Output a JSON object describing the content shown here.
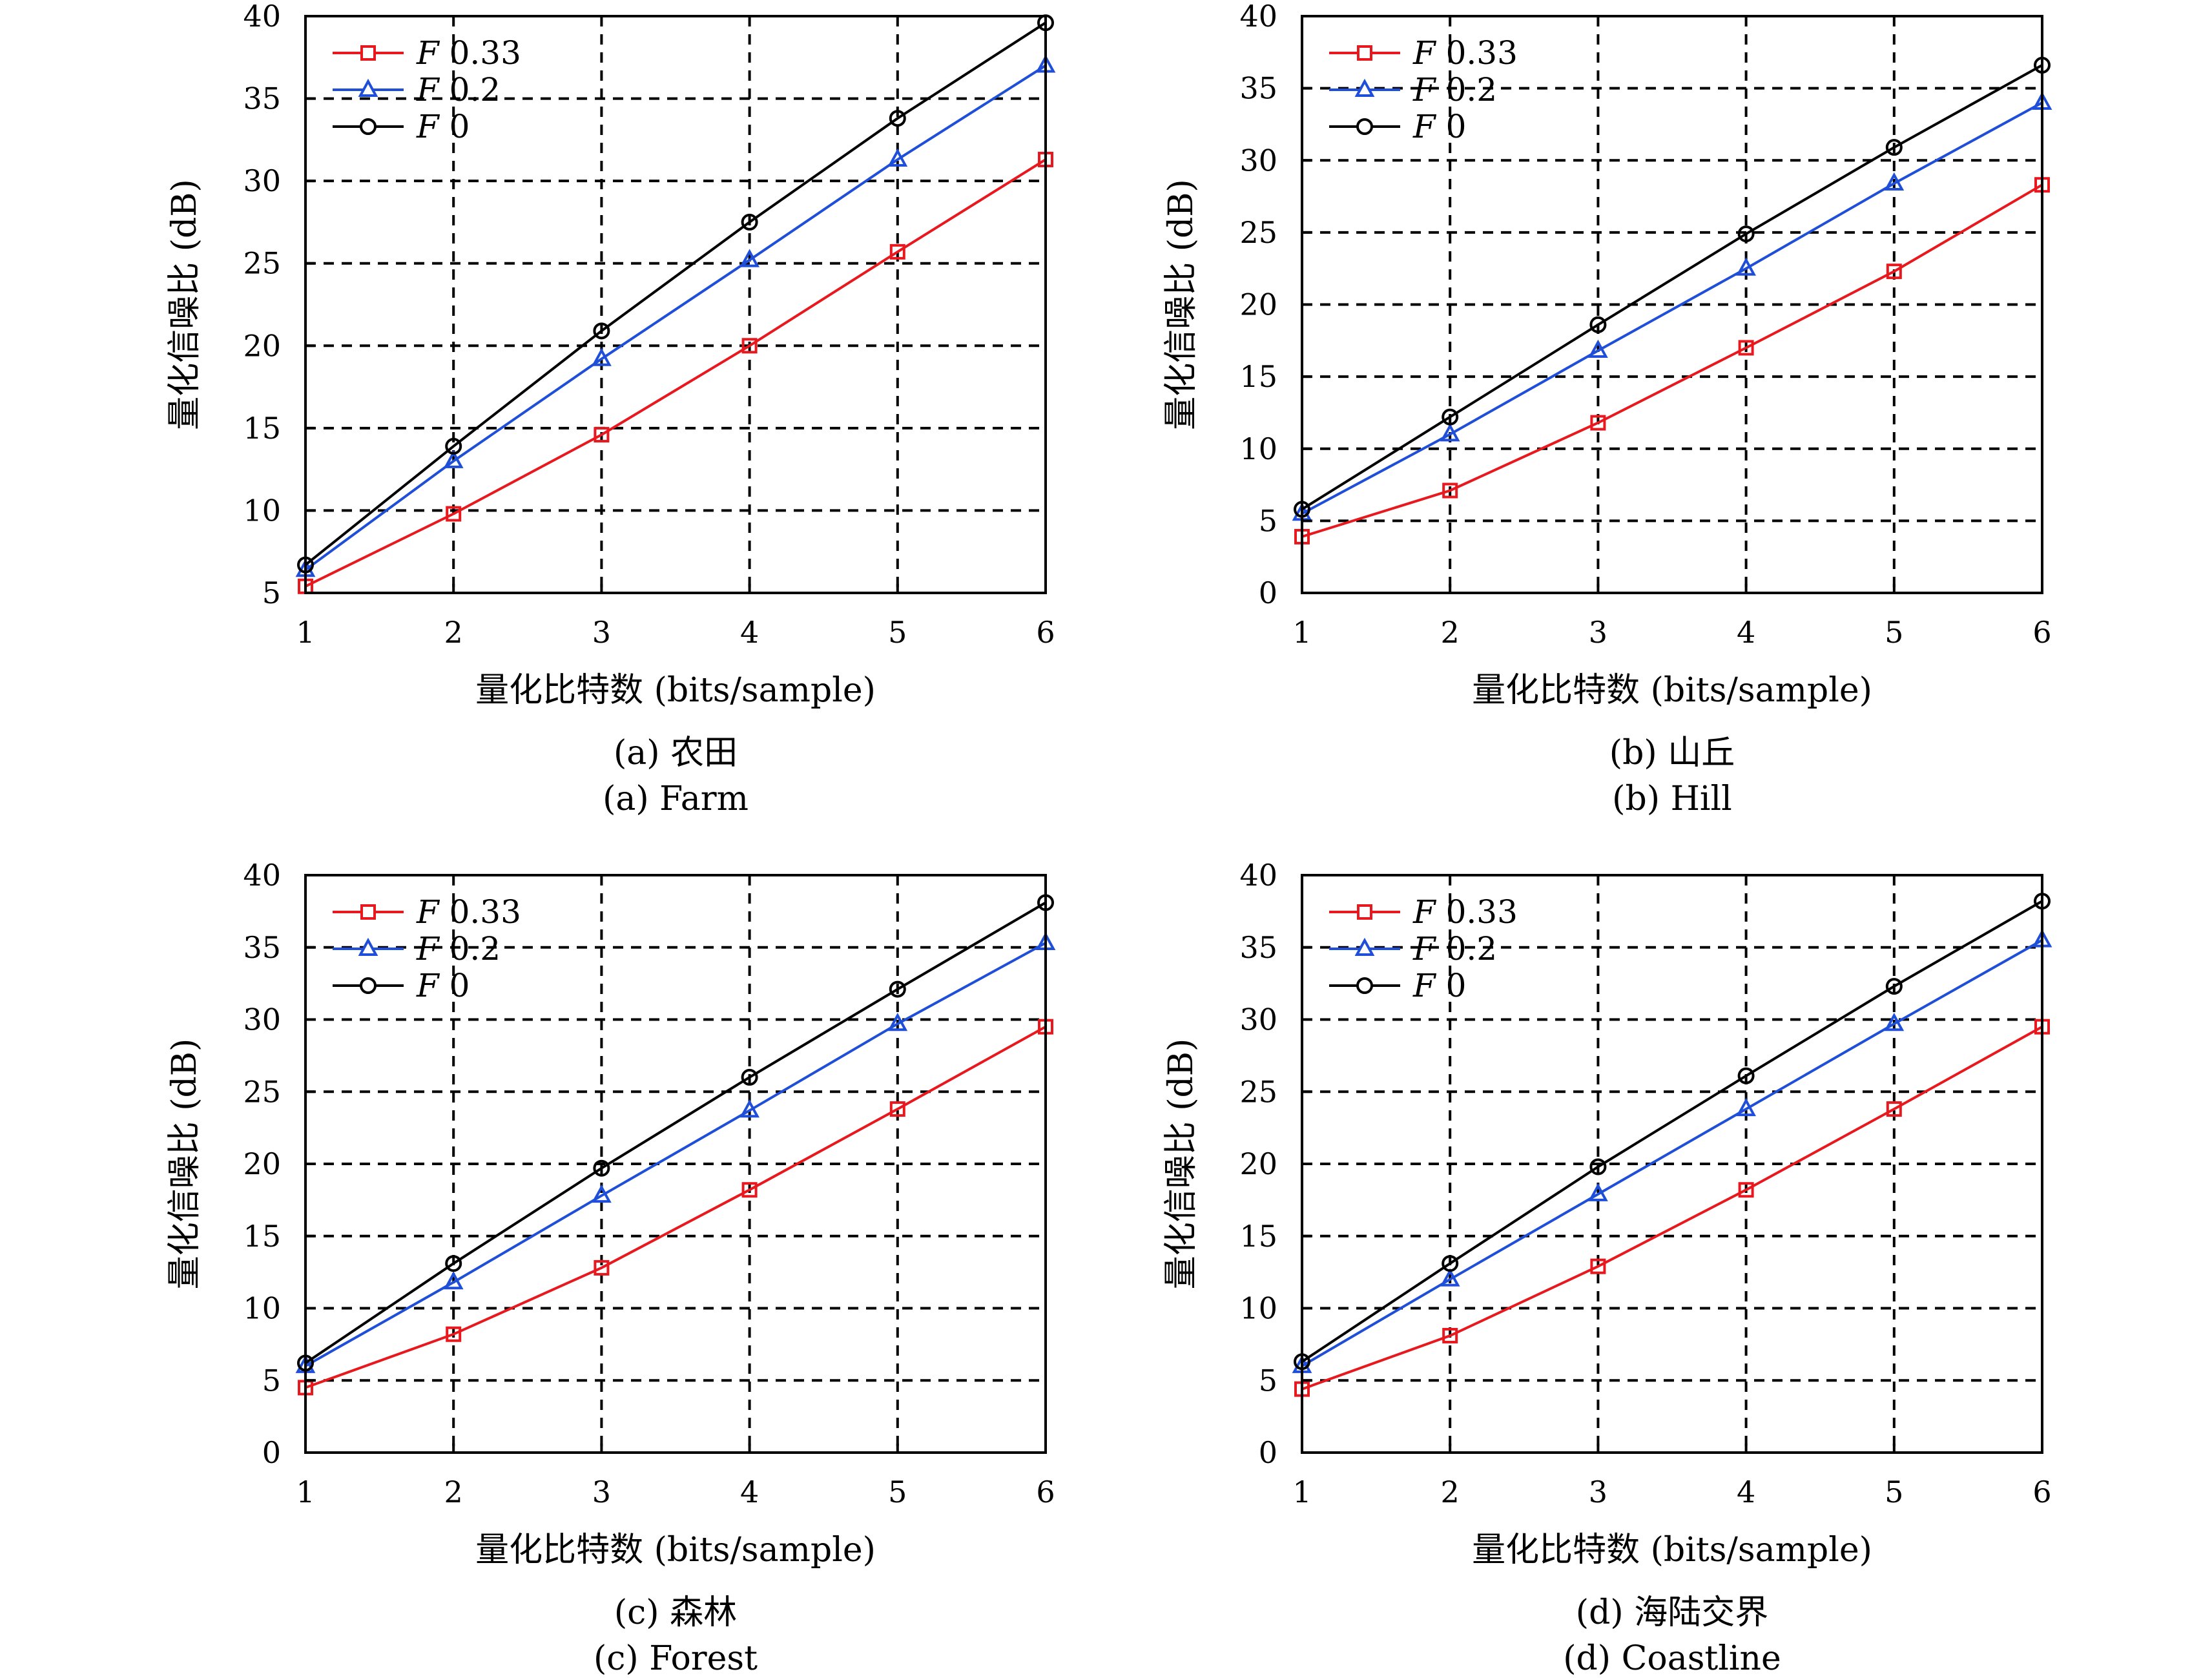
{
  "figure": {
    "xlabel": "量化比特数 (bits/sample)",
    "ylabel": "量化信噪比 (dB)"
  },
  "chart_data": [
    {
      "type": "line",
      "caption_zh": "(a) 农田",
      "caption_en": "(a) Farm",
      "xlabel": "量化比特数 (bits/sample)",
      "ylabel": "量化信噪比 (dB)",
      "x": [
        1,
        2,
        3,
        4,
        5,
        6
      ],
      "xlim": [
        1,
        6
      ],
      "ylim": [
        5,
        40
      ],
      "yticks": [
        5,
        10,
        15,
        20,
        25,
        30,
        35,
        40
      ],
      "xticks": [
        1,
        2,
        3,
        4,
        5,
        6
      ],
      "grid": "dashed",
      "legend_position": "top-left",
      "series": [
        {
          "name": "F 0.33",
          "color": "#e8191e",
          "marker": "square",
          "values": [
            5.4,
            9.8,
            14.6,
            20.0,
            25.7,
            31.3
          ]
        },
        {
          "name": "F 0.2",
          "color": "#1f4fd8",
          "marker": "triangle",
          "values": [
            6.4,
            13.0,
            19.2,
            25.2,
            31.3,
            37.0
          ]
        },
        {
          "name": "F 0",
          "color": "#000000",
          "marker": "circle",
          "values": [
            6.7,
            13.9,
            20.9,
            27.5,
            33.8,
            39.6
          ]
        }
      ]
    },
    {
      "type": "line",
      "caption_zh": "(b) 山丘",
      "caption_en": "(b) Hill",
      "xlabel": "量化比特数 (bits/sample)",
      "ylabel": "量化信噪比 (dB)",
      "x": [
        1,
        2,
        3,
        4,
        5,
        6
      ],
      "xlim": [
        1,
        6
      ],
      "ylim": [
        0,
        40
      ],
      "yticks": [
        0,
        5,
        10,
        15,
        20,
        25,
        30,
        35,
        40
      ],
      "xticks": [
        1,
        2,
        3,
        4,
        5,
        6
      ],
      "grid": "dashed",
      "legend_position": "top-left",
      "series": [
        {
          "name": "F 0.33",
          "color": "#e8191e",
          "marker": "square",
          "values": [
            3.9,
            7.1,
            11.8,
            17.0,
            22.3,
            28.3
          ]
        },
        {
          "name": "F 0.2",
          "color": "#1f4fd8",
          "marker": "triangle",
          "values": [
            5.5,
            11.0,
            16.8,
            22.5,
            28.4,
            34.0
          ]
        },
        {
          "name": "F 0",
          "color": "#000000",
          "marker": "circle",
          "values": [
            5.8,
            12.2,
            18.6,
            24.9,
            30.9,
            36.6
          ]
        }
      ]
    },
    {
      "type": "line",
      "caption_zh": "(c) 森林",
      "caption_en": "(c) Forest",
      "xlabel": "量化比特数 (bits/sample)",
      "ylabel": "量化信噪比 (dB)",
      "x": [
        1,
        2,
        3,
        4,
        5,
        6
      ],
      "xlim": [
        1,
        6
      ],
      "ylim": [
        0,
        40
      ],
      "yticks": [
        0,
        5,
        10,
        15,
        20,
        25,
        30,
        35,
        40
      ],
      "xticks": [
        1,
        2,
        3,
        4,
        5,
        6
      ],
      "grid": "dashed",
      "legend_position": "top-left",
      "series": [
        {
          "name": "F 0.33",
          "color": "#e8191e",
          "marker": "square",
          "values": [
            4.5,
            8.2,
            12.8,
            18.2,
            23.8,
            29.5
          ]
        },
        {
          "name": "F 0.2",
          "color": "#1f4fd8",
          "marker": "triangle",
          "values": [
            6.0,
            11.8,
            17.8,
            23.7,
            29.7,
            35.3
          ]
        },
        {
          "name": "F 0",
          "color": "#000000",
          "marker": "circle",
          "values": [
            6.2,
            13.1,
            19.7,
            26.0,
            32.1,
            38.1
          ]
        }
      ]
    },
    {
      "type": "line",
      "caption_zh": "(d) 海陆交界",
      "caption_en": "(d) Coastline",
      "xlabel": "量化比特数 (bits/sample)",
      "ylabel": "量化信噪比 (dB)",
      "x": [
        1,
        2,
        3,
        4,
        5,
        6
      ],
      "xlim": [
        1,
        6
      ],
      "ylim": [
        0,
        40
      ],
      "yticks": [
        0,
        5,
        10,
        15,
        20,
        25,
        30,
        35,
        40
      ],
      "xticks": [
        1,
        2,
        3,
        4,
        5,
        6
      ],
      "grid": "dashed",
      "legend_position": "top-left",
      "series": [
        {
          "name": "F 0.33",
          "color": "#e8191e",
          "marker": "square",
          "values": [
            4.4,
            8.1,
            12.9,
            18.2,
            23.8,
            29.5
          ]
        },
        {
          "name": "F 0.2",
          "color": "#1f4fd8",
          "marker": "triangle",
          "values": [
            6.0,
            12.0,
            17.9,
            23.8,
            29.7,
            35.5
          ]
        },
        {
          "name": "F 0",
          "color": "#000000",
          "marker": "circle",
          "values": [
            6.3,
            13.1,
            19.8,
            26.1,
            32.3,
            38.2
          ]
        }
      ]
    }
  ]
}
